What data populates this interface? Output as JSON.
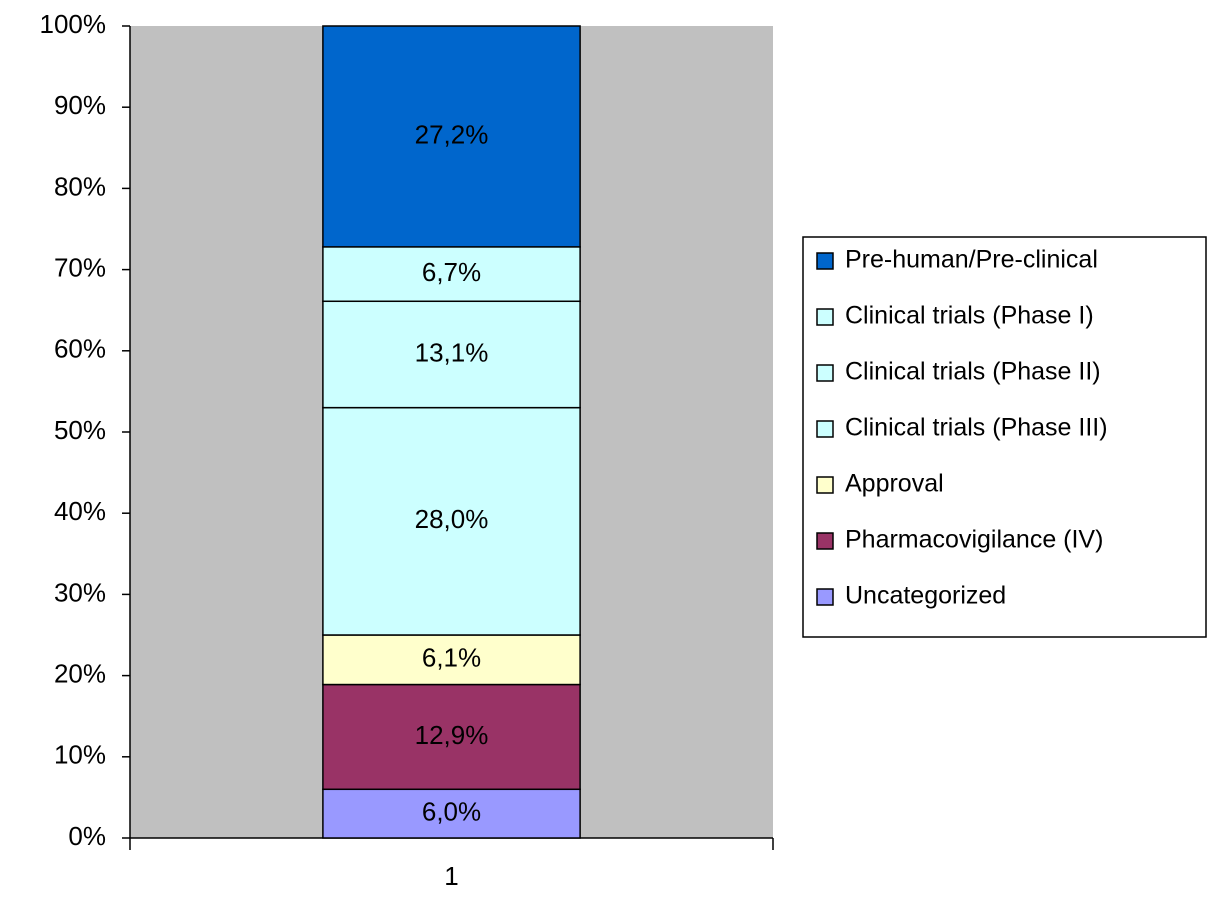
{
  "chart_data": {
    "type": "stacked_bar_100",
    "categories": [
      "1"
    ],
    "series": [
      {
        "name": "Uncategorized",
        "color": "#9999ff",
        "values": [
          6.0
        ],
        "value_labels": [
          "6,0%"
        ]
      },
      {
        "name": "Pharmacovigilance (IV)",
        "color": "#993366",
        "values": [
          12.9
        ],
        "value_labels": [
          "12,9%"
        ]
      },
      {
        "name": "Approval",
        "color": "#ffffcc",
        "values": [
          6.1
        ],
        "value_labels": [
          "6,1%"
        ]
      },
      {
        "name": "Clinical trials (Phase III)",
        "color": "#ccffff",
        "values": [
          28.0
        ],
        "value_labels": [
          "28,0%"
        ]
      },
      {
        "name": "Clinical trials (Phase II)",
        "color": "#ccffff",
        "values": [
          13.1
        ],
        "value_labels": [
          "13,1%"
        ]
      },
      {
        "name": "Clinical trials (Phase I)",
        "color": "#ccffff",
        "values": [
          6.7
        ],
        "value_labels": [
          "6,7%"
        ]
      },
      {
        "name": "Pre-human/Pre-clinical",
        "color": "#0066cc",
        "values": [
          27.2
        ],
        "value_labels": [
          "27,2%"
        ]
      }
    ],
    "ylim": [
      0,
      100
    ],
    "yticks": [
      {
        "value": 0,
        "label": "0%"
      },
      {
        "value": 10,
        "label": "10%"
      },
      {
        "value": 20,
        "label": "20%"
      },
      {
        "value": 30,
        "label": "30%"
      },
      {
        "value": 40,
        "label": "40%"
      },
      {
        "value": 50,
        "label": "50%"
      },
      {
        "value": 60,
        "label": "60%"
      },
      {
        "value": 70,
        "label": "70%"
      },
      {
        "value": 80,
        "label": "80%"
      },
      {
        "value": 90,
        "label": "90%"
      },
      {
        "value": 100,
        "label": "100%"
      }
    ],
    "plot_background": "#c0c0c0",
    "legend": "right"
  }
}
